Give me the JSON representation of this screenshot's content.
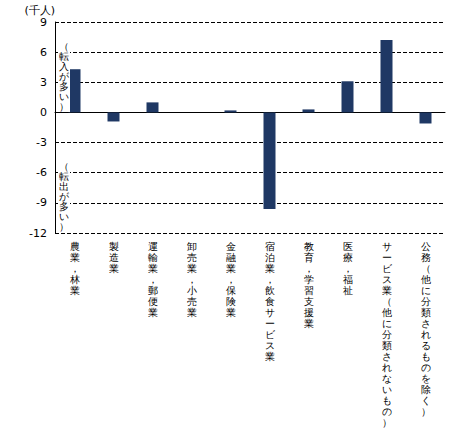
{
  "chart_data": {
    "type": "bar",
    "y_label": "(千人)",
    "categories": [
      "農業，林業",
      "製造業",
      "運輸業，郵便業",
      "卸売業，小売業",
      "金融業，保険業",
      "宿泊業，飲食サービス業",
      "教育，学習支援業",
      "医療，福祉",
      "サービス業（他に分類されないもの）",
      "公務（他に分類されるものを除く）"
    ],
    "values": [
      4.3,
      -0.9,
      1.0,
      0,
      0.2,
      -9.6,
      0.3,
      3.1,
      7.2,
      -1.1
    ],
    "color": "#1f3864",
    "ylim": [
      -12,
      9
    ],
    "yticks": [
      -12,
      -9,
      -6,
      -3,
      0,
      3,
      6,
      9
    ],
    "grid": true,
    "annotations": [
      "（転入が多い）",
      "（転出が多い）"
    ]
  }
}
